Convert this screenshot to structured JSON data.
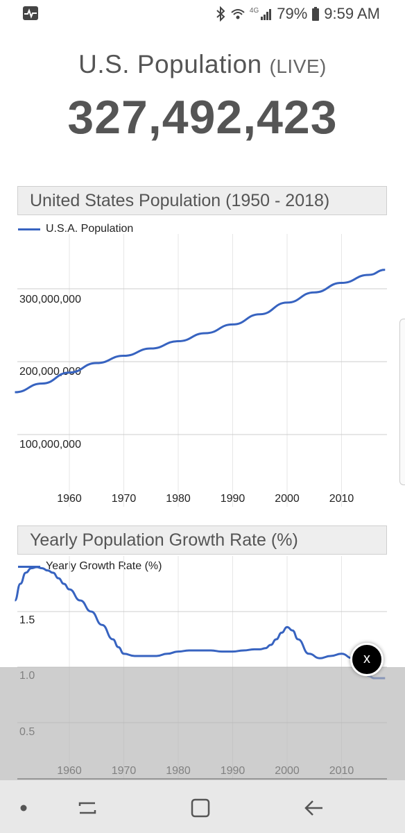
{
  "status_bar": {
    "app_icon": "activity-monitor-icon",
    "network": "4G",
    "battery": "79%",
    "time": "9:59 AM"
  },
  "header": {
    "title": "U.S. Population",
    "title_suffix": "(LIVE)",
    "count": "327,492,423"
  },
  "chart_data": [
    {
      "type": "line",
      "title": "United States Population (1950 - 2018)",
      "series": [
        {
          "name": "U.S.A. Population",
          "color": "#3763c0",
          "x": [
            1950,
            1955,
            1960,
            1965,
            1970,
            1975,
            1980,
            1985,
            1990,
            1995,
            2000,
            2005,
            2010,
            2015,
            2018
          ],
          "y": [
            159000000,
            171000000,
            186000000,
            199000000,
            209000000,
            219000000,
            229000000,
            240000000,
            252000000,
            266000000,
            282000000,
            296000000,
            309000000,
            320000000,
            327000000
          ]
        }
      ],
      "yticks": [
        "100,000,000",
        "200,000,000",
        "300,000,000"
      ],
      "xticks": [
        "1960",
        "1970",
        "1980",
        "1990",
        "2000",
        "2010"
      ]
    },
    {
      "type": "line",
      "title": "Yearly Population Growth Rate (%)",
      "series": [
        {
          "name": "Yearly Growth Rate (%)",
          "color": "#3763c0",
          "x": [
            1950,
            1951,
            1952,
            1953,
            1954,
            1955,
            1956,
            1957,
            1958,
            1959,
            1960,
            1962,
            1964,
            1966,
            1968,
            1969,
            1970,
            1972,
            1974,
            1976,
            1978,
            1980,
            1982,
            1984,
            1986,
            1988,
            1990,
            1992,
            1994,
            1995,
            1996,
            1997,
            1998,
            1999,
            2000,
            2001,
            2002,
            2004,
            2006,
            2008,
            2010,
            2012,
            2014,
            2015,
            2016,
            2018
          ],
          "y": [
            1.6,
            1.75,
            1.85,
            1.89,
            1.9,
            1.89,
            1.87,
            1.85,
            1.8,
            1.75,
            1.7,
            1.6,
            1.5,
            1.38,
            1.25,
            1.18,
            1.12,
            1.1,
            1.1,
            1.1,
            1.12,
            1.14,
            1.15,
            1.15,
            1.15,
            1.14,
            1.14,
            1.15,
            1.16,
            1.16,
            1.17,
            1.2,
            1.25,
            1.31,
            1.36,
            1.33,
            1.25,
            1.12,
            1.08,
            1.1,
            1.12,
            1.08,
            0.98,
            0.92,
            0.9,
            0.9
          ]
        }
      ],
      "yticks": [
        "0.5",
        "1.0",
        "1.5"
      ],
      "xticks": [
        "1960",
        "1970",
        "1980",
        "1990",
        "2000",
        "2010"
      ]
    }
  ],
  "overlay": {
    "close_label": "x"
  },
  "nav_bar": {
    "items": [
      "dot-icon",
      "recent-apps-icon",
      "home-icon",
      "back-icon"
    ]
  }
}
